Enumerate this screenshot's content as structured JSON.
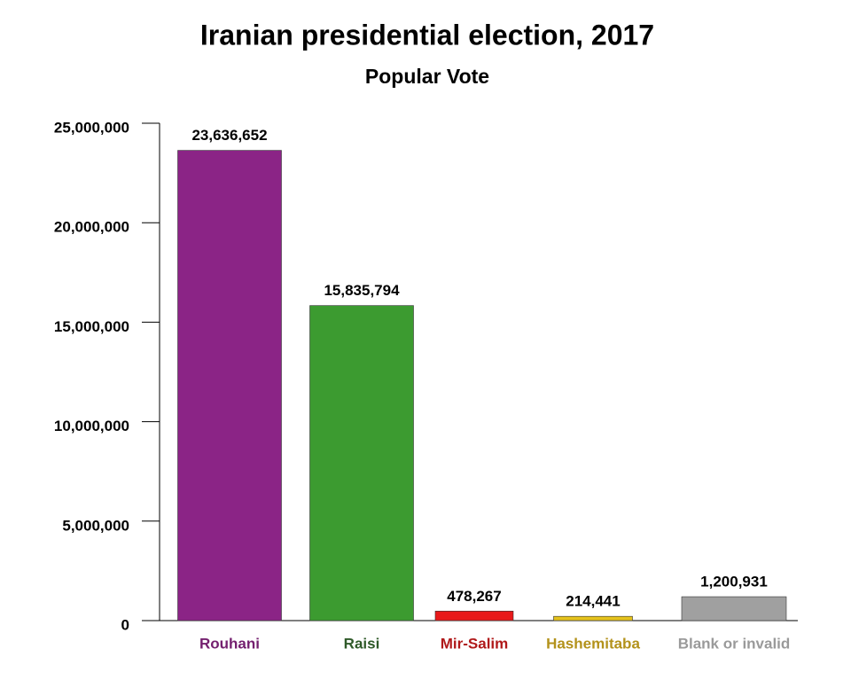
{
  "chart_data": {
    "type": "bar",
    "title": "Iranian presidential election, 2017",
    "subtitle": "Popular Vote",
    "categories": [
      "Rouhani",
      "Raisi",
      "Mir-Salim",
      "Hashemitaba",
      "Blank or invalid"
    ],
    "values": [
      23636652,
      15835794,
      478267,
      214441,
      1200931
    ],
    "value_labels": [
      "23,636,652",
      "15,835,794",
      "478,267",
      "214,441",
      "1,200,931"
    ],
    "colors": [
      "#8b2486",
      "#3c9b30",
      "#e8191a",
      "#e5c21c",
      "#a0a0a0"
    ],
    "label_colors": [
      "#74206f",
      "#2f5a29",
      "#b0191a",
      "#b3921b",
      "#9a9a9a"
    ],
    "ylim": [
      0,
      25000000
    ],
    "yticks": [
      0,
      {
        "value": 5000000,
        "label": "5,000,000"
      },
      {
        "value": 10000000,
        "label": "10,000,000"
      },
      {
        "value": 15000000,
        "label": "15,000,000"
      },
      {
        "value": 20000000,
        "label": "20,000,000"
      },
      {
        "value": 25000000,
        "label": "25,000,000"
      }
    ]
  }
}
